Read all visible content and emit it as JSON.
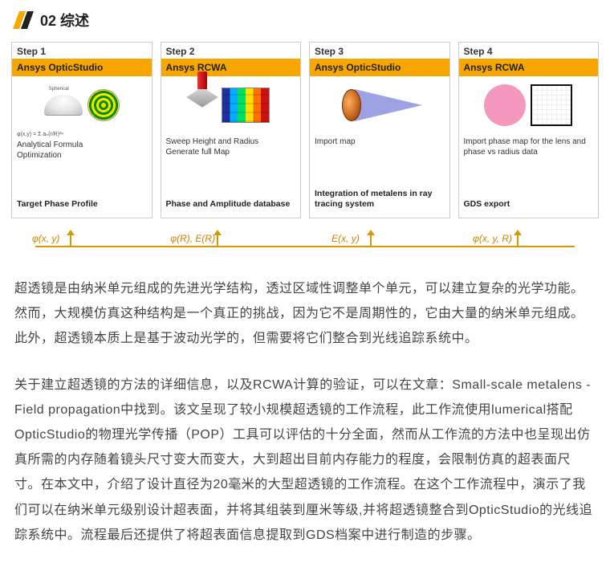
{
  "header": {
    "section_number": "02",
    "section_title": "综述",
    "slash_colors": [
      "#f7a700",
      "#222222"
    ]
  },
  "steps": [
    {
      "num": "Step 1",
      "tool": "Ansys OpticStudio",
      "desc": "Analytical Formula\nOptimization",
      "bold": "Target Phase Profile",
      "formula": "φ(x,y) = Σ aₙ(r/R)²ⁿ"
    },
    {
      "num": "Step 2",
      "tool": "Ansys RCWA",
      "desc": "Sweep Height and Radius\nGenerate full Map",
      "bold": "Phase and Amplitude database"
    },
    {
      "num": "Step 3",
      "tool": "Ansys OpticStudio",
      "desc": "Import map",
      "bold": "Integration of metalens in ray tracing system"
    },
    {
      "num": "Step 4",
      "tool": "Ansys RCWA",
      "desc": "Import phase map for the lens and phase vs radius data",
      "bold": "GDS export"
    }
  ],
  "arrows": {
    "color": "#d69a00",
    "labels": [
      "φ(x, y)",
      "φ(R), E(R)",
      "E(x, y)",
      "φ(x, y, R)"
    ],
    "positions_pct": [
      10,
      35,
      61,
      86
    ]
  },
  "colors": {
    "accent": "#f7a700",
    "text": "#444444",
    "background": "#ffffff"
  },
  "paragraphs": {
    "p1": "超透镜是由纳米单元组成的先进光学结构，透过区域性调整单个单元，可以建立复杂的光学功能。然而，大规模仿真这种结构是一个真正的挑战，因为它不是周期性的，它由大量的纳米单元组成。此外，超透镜本质上是基于波动光学的，但需要将它们整合到光线追踪系统中。",
    "p2": "关于建立超透镜的方法的详细信息，以及RCWA计算的验证，可以在文章：Small-scale metalens - Field propagation中找到。该文呈现了较小规模超透镜的工作流程，此工作流使用lumerical搭配OpticStudio的物理光学传播（POP）工具可以评估的十分全面，然而从工作流的方法中也呈现出仿真所需的内存随着镜头尺寸变大而变大，大到超出目前内存能力的程度，会限制仿真的超表面尺寸。在本文中，介绍了设计直径为20毫米的大型超透镜的工作流程。在这个工作流程中，演示了我们可以在纳米单元级别设计超表面，并将其组装到厘米等级,并将超透镜整合到OpticStudio的光线追踪系统中。流程最后还提供了将超表面信息提取到GDS档案中进行制造的步骤。"
  }
}
